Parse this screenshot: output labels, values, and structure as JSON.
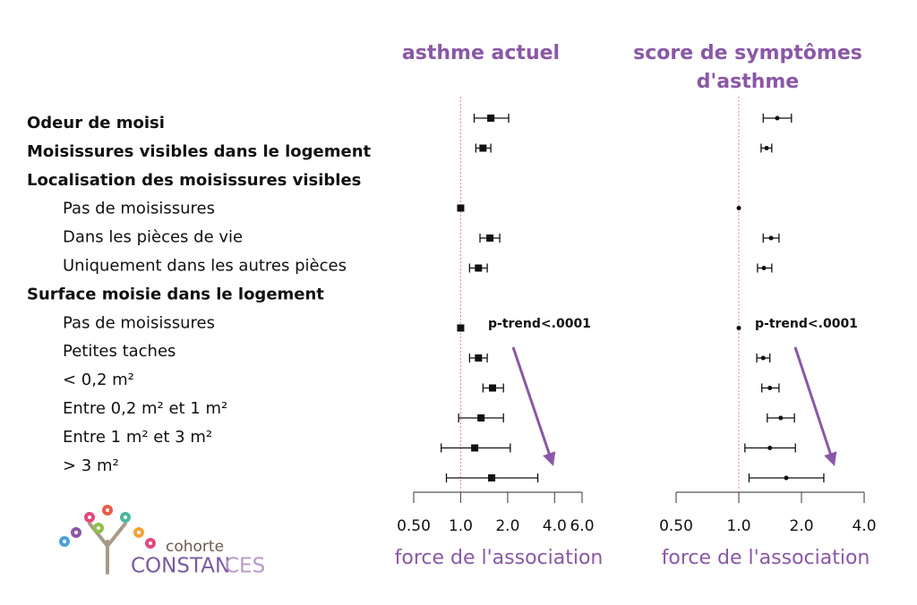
{
  "rows": [
    {
      "label": "Odeur de moisi",
      "level": 0
    },
    {
      "label": "Moisissures visibles dans le logement",
      "level": 0
    },
    {
      "label": "Localisation des moisissures visibles",
      "level": 0
    },
    {
      "label": "Pas de moisissures",
      "level": 1
    },
    {
      "label": "Dans les pièces de vie",
      "level": 1
    },
    {
      "label": "Uniquement dans les autres pièces",
      "level": 1
    },
    {
      "label": "Surface moisie dans le logement",
      "level": 0
    },
    {
      "label": "Pas de moisissures",
      "level": 1
    },
    {
      "label": "Petites taches",
      "level": 1
    },
    {
      "label": "< 0,2 m²",
      "level": 1
    },
    {
      "label": "Entre 0,2 m² et 1 m²",
      "level": 1
    },
    {
      "label": "Entre 1 m² et 3 m²",
      "level": 1
    },
    {
      "label": "> 3 m²",
      "level": 1
    }
  ],
  "brand": [
    "cohorte",
    "CONSTAN",
    "CES"
  ],
  "chart_data": [
    {
      "type": "forest",
      "title": [
        "asthme actuel"
      ],
      "xlabel": "force de l'association",
      "annotation": "p-trend<.0001",
      "log_x": true,
      "marker": "square",
      "color": "#111111",
      "xlim": [
        0.5,
        6
      ],
      "xticks": [
        {
          "value": 0.5,
          "label": "0.50"
        },
        {
          "value": 1,
          "label": "1.0"
        },
        {
          "value": 2,
          "label": "2.0"
        },
        {
          "value": 4,
          "label": "4.0"
        },
        {
          "value": 6,
          "label": "6.0"
        }
      ],
      "values": [
        1.56,
        1.39,
        null,
        1.0,
        1.54,
        1.3,
        null,
        1.0,
        1.3,
        1.6,
        1.35,
        1.23,
        1.58
      ],
      "lower": [
        1.22,
        1.25,
        null,
        null,
        1.33,
        1.14,
        null,
        null,
        1.14,
        1.39,
        0.97,
        0.75,
        0.81
      ],
      "upper": [
        2.03,
        1.56,
        null,
        null,
        1.78,
        1.48,
        null,
        null,
        1.48,
        1.88,
        1.88,
        2.08,
        3.12
      ]
    },
    {
      "type": "forest",
      "title": [
        "score de symptômes",
        "d'asthme"
      ],
      "xlabel": "force de l'association",
      "annotation": "p-trend<.0001",
      "log_x": true,
      "marker": "dot",
      "color": "#111111",
      "xlim": [
        0.5,
        4
      ],
      "xticks": [
        {
          "value": 0.5,
          "label": "0.50"
        },
        {
          "value": 1,
          "label": "1.0"
        },
        {
          "value": 2,
          "label": "2.0"
        },
        {
          "value": 4,
          "label": "4.0"
        }
      ],
      "values": [
        1.53,
        1.36,
        null,
        1.0,
        1.43,
        1.32,
        null,
        1.0,
        1.31,
        1.41,
        1.59,
        1.41,
        1.69
      ],
      "lower": [
        1.31,
        1.28,
        null,
        null,
        1.31,
        1.23,
        null,
        null,
        1.22,
        1.29,
        1.37,
        1.07,
        1.12
      ],
      "upper": [
        1.79,
        1.44,
        null,
        null,
        1.56,
        1.44,
        null,
        null,
        1.41,
        1.56,
        1.85,
        1.87,
        2.56
      ]
    }
  ]
}
